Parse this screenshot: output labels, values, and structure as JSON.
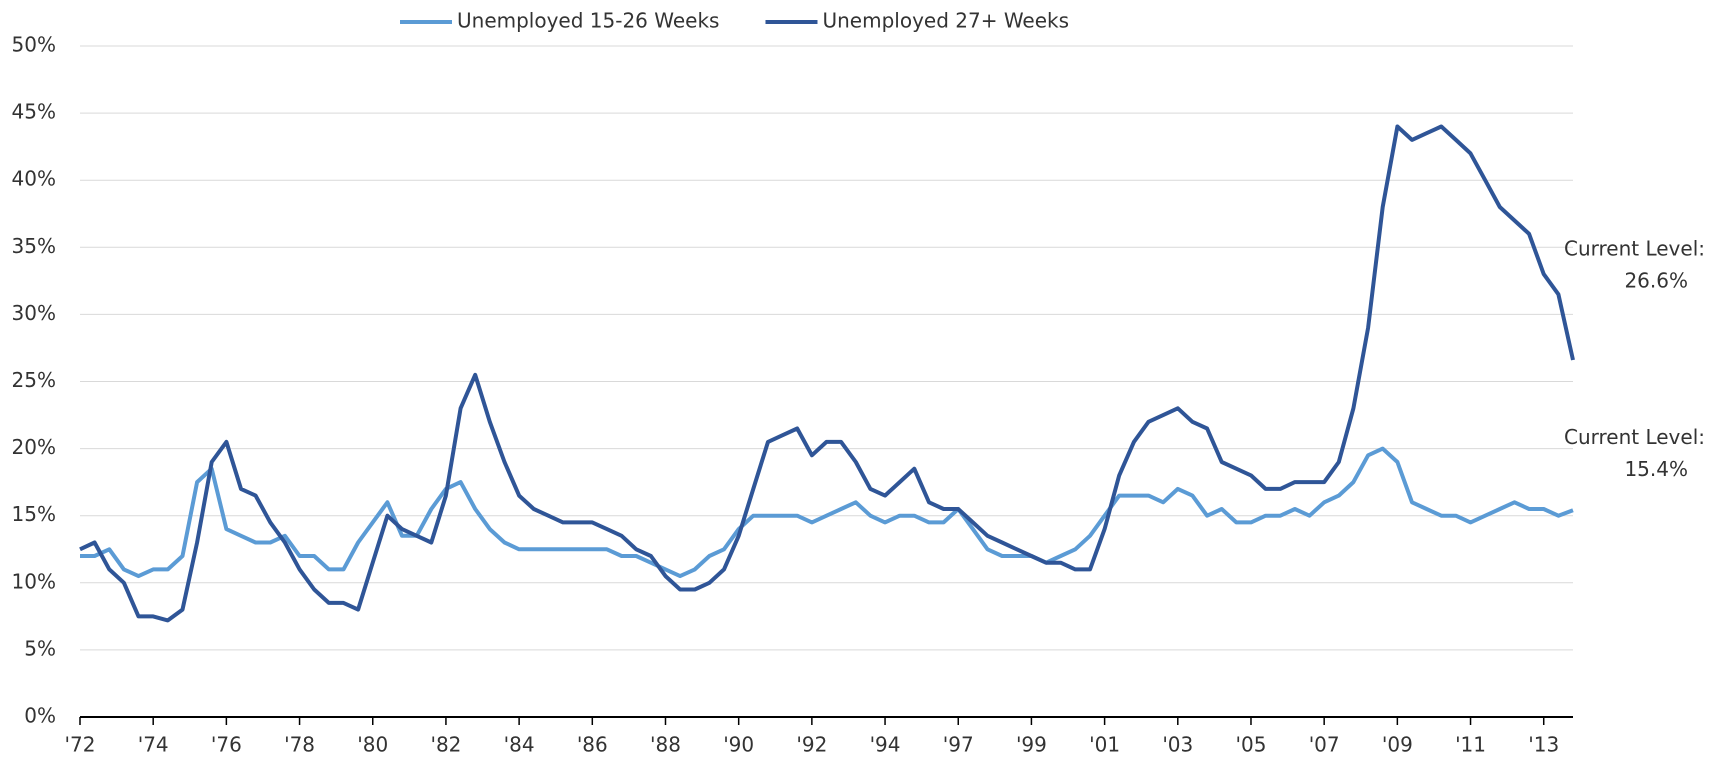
{
  "chart_data": {
    "type": "line",
    "categories": [
      "'72",
      null,
      null,
      null,
      null,
      "'74",
      null,
      null,
      null,
      null,
      "'76",
      null,
      null,
      null,
      null,
      "'78",
      null,
      null,
      null,
      null,
      "'80",
      null,
      null,
      null,
      null,
      "'82",
      null,
      null,
      null,
      null,
      "'84",
      null,
      null,
      null,
      null,
      "'86",
      null,
      null,
      null,
      null,
      "'88",
      null,
      null,
      null,
      null,
      "'90",
      null,
      null,
      null,
      null,
      "'92",
      null,
      null,
      null,
      null,
      "'94",
      null,
      null,
      null,
      null,
      "'97",
      null,
      null,
      null,
      null,
      "'99",
      null,
      null,
      null,
      null,
      "'01",
      null,
      null,
      null,
      null,
      "'03",
      null,
      null,
      null,
      null,
      "'05",
      null,
      null,
      null,
      null,
      "'07",
      null,
      null,
      null,
      null,
      "'09",
      null,
      null,
      null,
      null,
      "'11",
      null,
      null,
      null,
      null,
      "'13",
      null,
      null
    ],
    "series": [
      {
        "name": "Unemployed 15-26 Weeks",
        "color": "#5b9bd5",
        "values": [
          12,
          12,
          12.5,
          11,
          10.5,
          11,
          11,
          12,
          17.5,
          18.5,
          14,
          13.5,
          13,
          13,
          13.5,
          12,
          12,
          11,
          11,
          13,
          14.5,
          16,
          13.5,
          13.5,
          15.5,
          17,
          17.5,
          15.5,
          14,
          13,
          12.5,
          12.5,
          12.5,
          12.5,
          12.5,
          12.5,
          12.5,
          12,
          12,
          11.5,
          11,
          10.5,
          11,
          12,
          12.5,
          14,
          15,
          15,
          15,
          15,
          14.5,
          15,
          15.5,
          16,
          15,
          14.5,
          15,
          15,
          14.5,
          14.5,
          15.5,
          14,
          12.5,
          12,
          12,
          12,
          11.5,
          12,
          12.5,
          13.5,
          15,
          16.5,
          16.5,
          16.5,
          16,
          17,
          16.5,
          15,
          15.5,
          14.5,
          14.5,
          15,
          15,
          15.5,
          15,
          16,
          16.5,
          17.5,
          19.5,
          20,
          19,
          16,
          15.5,
          15,
          15,
          14.5,
          15,
          15.5,
          16,
          15.5,
          15.5,
          15,
          15.4
        ]
      },
      {
        "name": "Unemployed 27+ Weeks",
        "color": "#2f5597",
        "values": [
          12.5,
          13,
          11,
          10,
          7.5,
          7.5,
          7.2,
          8,
          13,
          19,
          20.5,
          17,
          16.5,
          14.5,
          13,
          11,
          9.5,
          8.5,
          8.5,
          8,
          11.5,
          15,
          14,
          13.5,
          13,
          16.5,
          23,
          25.5,
          22,
          19,
          16.5,
          15.5,
          15,
          14.5,
          14.5,
          14.5,
          14,
          13.5,
          12.5,
          12,
          10.5,
          9.5,
          9.5,
          10,
          11,
          13.5,
          17,
          20.5,
          21,
          21.5,
          19.5,
          20.5,
          20.5,
          19,
          17,
          16.5,
          17.5,
          18.5,
          16,
          15.5,
          15.5,
          14.5,
          13.5,
          13,
          12.5,
          12,
          11.5,
          11.5,
          11,
          11,
          14,
          18,
          20.5,
          22,
          22.5,
          23,
          22,
          21.5,
          19,
          18.5,
          18,
          17,
          17,
          17.5,
          17.5,
          17.5,
          19,
          23,
          29,
          38,
          44,
          43,
          43.5,
          44,
          43,
          42,
          40,
          38,
          37,
          36,
          33,
          31.5,
          26.6
        ]
      }
    ],
    "ylim": [
      0,
      50
    ],
    "yticks": [
      {
        "value": 0,
        "label": "0%"
      },
      {
        "value": 5,
        "label": "5%"
      },
      {
        "value": 10,
        "label": "10%"
      },
      {
        "value": 15,
        "label": "15%"
      },
      {
        "value": 20,
        "label": "20%"
      },
      {
        "value": 25,
        "label": "25%"
      },
      {
        "value": 30,
        "label": "30%"
      },
      {
        "value": 35,
        "label": "35%"
      },
      {
        "value": 40,
        "label": "40%"
      },
      {
        "value": 45,
        "label": "45%"
      },
      {
        "value": 50,
        "label": "50%"
      }
    ],
    "grid": true,
    "legend": "top",
    "annotations": [
      {
        "series": 1,
        "lines": [
          "Current Level:",
          "26.6%"
        ]
      },
      {
        "series": 0,
        "lines": [
          "Current Level:",
          "15.4%"
        ]
      }
    ]
  }
}
